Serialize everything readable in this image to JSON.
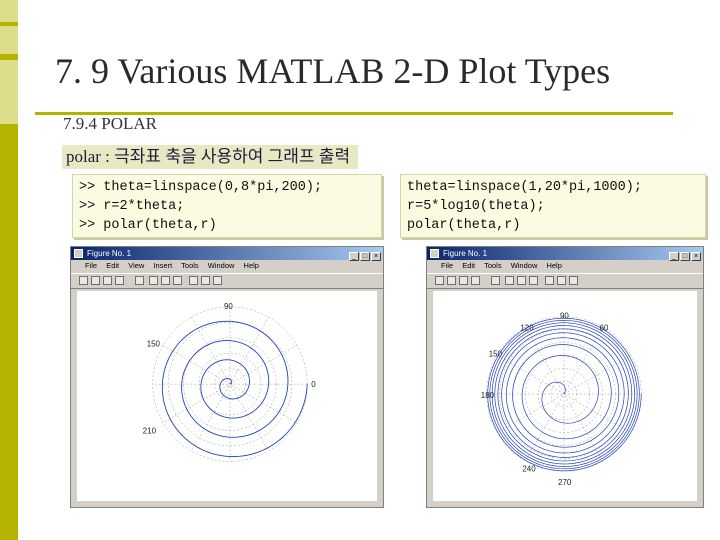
{
  "slide": {
    "title": "7. 9 Various MATLAB 2-D Plot Types",
    "subheading": "7.9.4 POLAR",
    "description": "polar : 극좌표 축을 사용하여 그래프 출력"
  },
  "code_left": {
    "line1": ">> theta=linspace(0,8*pi,200);",
    "line2": ">> r=2*theta;",
    "line3": ">> polar(theta,r)"
  },
  "code_right": {
    "line1": "theta=linspace(1,20*pi,1000);",
    "line2": "r=5*log10(theta);",
    "line3": "polar(theta,r)"
  },
  "figure_left": {
    "window_title": "Figure No. 1",
    "menu": [
      "File",
      "Edit",
      "View",
      "Insert",
      "Tools",
      "Window",
      "Help"
    ],
    "angle_labels": {
      "a90": "90",
      "a150": "150",
      "a0": "0",
      "a210": "210"
    }
  },
  "figure_right": {
    "window_title": "Figure No. 1",
    "menu": [
      "File",
      "Edit",
      "Tools",
      "Window",
      "Help"
    ],
    "angle_labels": {
      "a90": "90",
      "a120": "120",
      "a60": "60",
      "a150": "150",
      "a180": "180",
      "a240": "240",
      "a270": "270"
    }
  },
  "colors": {
    "accent": "#b3b300",
    "plot_line": "#1f3fbf",
    "grid": "#9a9a9a"
  }
}
